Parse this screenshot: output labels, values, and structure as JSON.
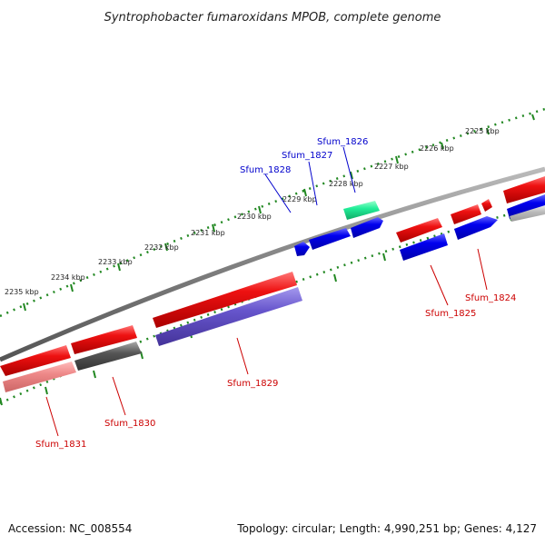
{
  "title": "Syntrophobacter fumaroxidans MPOB, complete genome",
  "accession": "Accession: NC_008554",
  "topology": "Topology: circular; Length: 4,990,251 bp; Genes: 4,127",
  "kbp_labels": [
    "2225 kbp",
    "2226 kbp",
    "2227 kbp",
    "2228 kbp",
    "2229 kbp",
    "2230 kbp",
    "2231 kbp",
    "2232 kbp",
    "2233 kbp",
    "2234 kbp",
    "2235 kbp"
  ],
  "gene_labels": {
    "sfum_1826": "Sfum_1826",
    "sfum_1827": "Sfum_1827",
    "sfum_1828": "Sfum_1828",
    "sfum_1824": "Sfum_1824",
    "sfum_1825": "Sfum_1825",
    "sfum_1829": "Sfum_1829",
    "sfum_1830": "Sfum_1830",
    "sfum_1831": "Sfum_1831"
  },
  "colors": {
    "forward_label": "#0000cc",
    "reverse_label": "#cc0000",
    "red_gene": "#ee1111",
    "blue_gene": "#0000ee",
    "green_gene": "#22ee99",
    "purple_gene": "#6655cc",
    "gray_gene": "#555555",
    "pink_gene": "#ee8888",
    "backbone": "#808080",
    "ruler_tick": "#228822"
  }
}
